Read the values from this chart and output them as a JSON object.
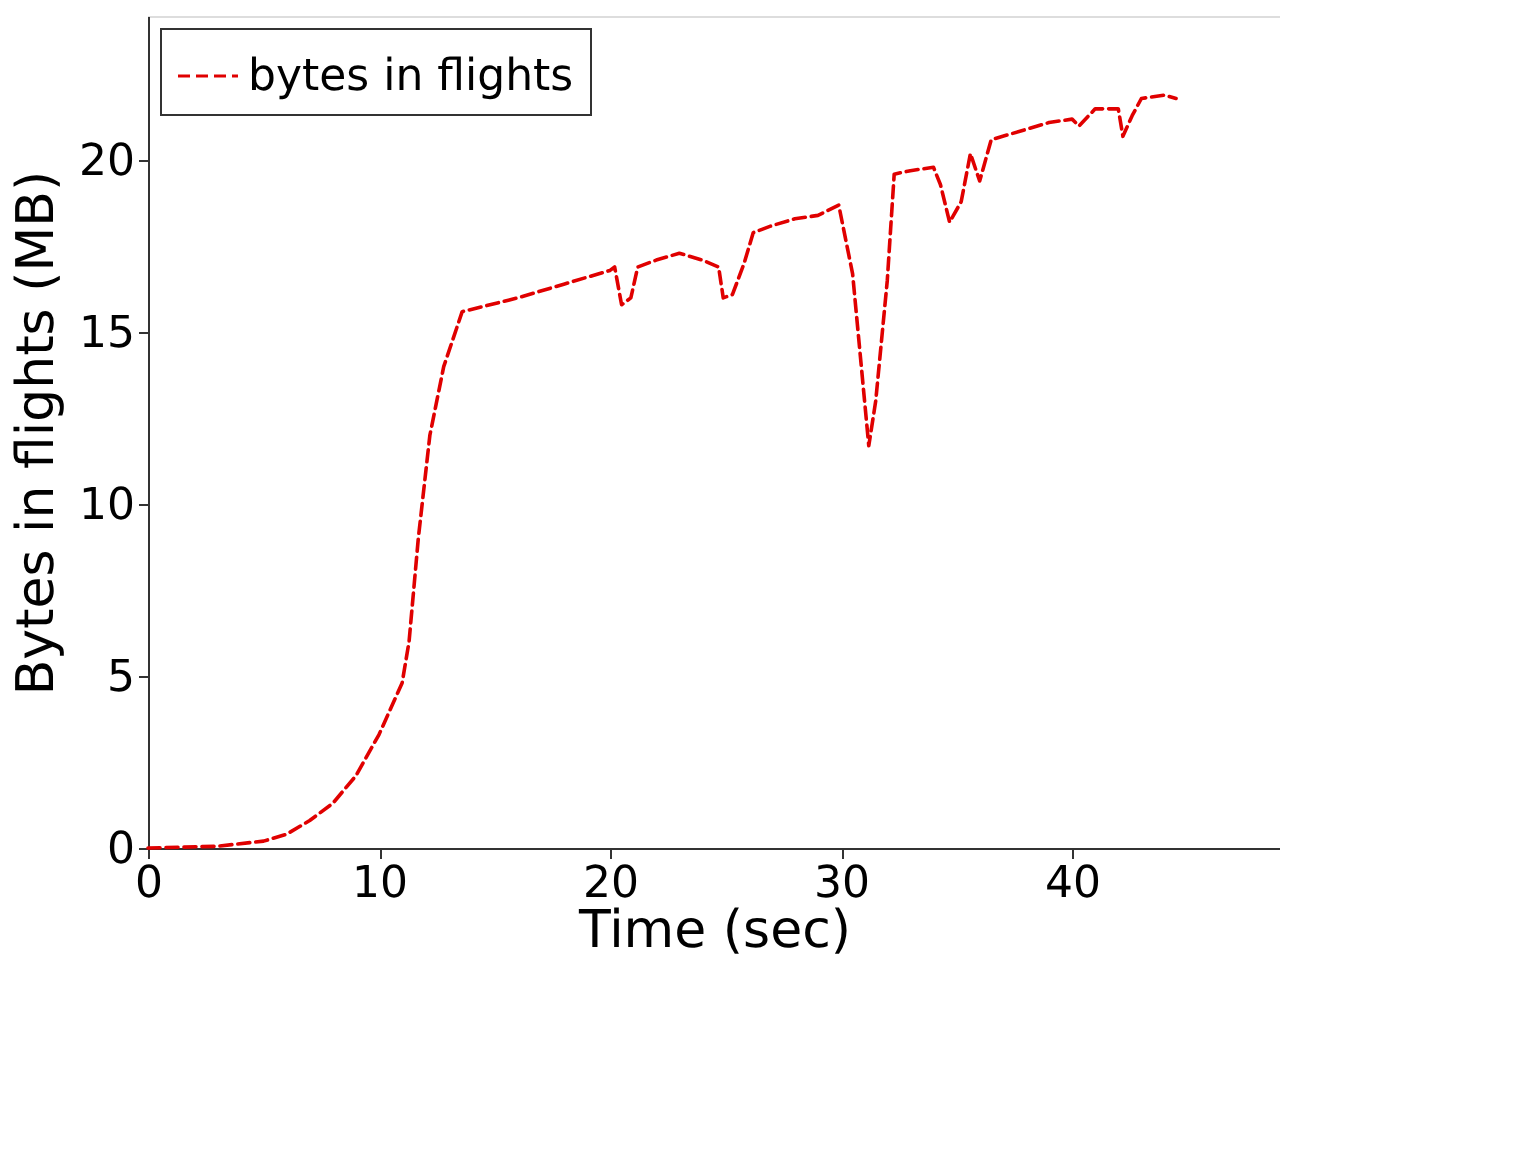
{
  "chart_data": {
    "type": "line",
    "xlabel": "Time (sec)",
    "ylabel": "Bytes in flights (MB)",
    "xlim": [
      0,
      49
    ],
    "ylim": [
      0,
      24.2
    ],
    "xticks": [
      0,
      10,
      20,
      30,
      40
    ],
    "yticks": [
      0,
      5,
      10,
      15,
      20
    ],
    "grid": false,
    "legend": "top left",
    "line_style": "dashed",
    "marker": "none",
    "x": [
      0,
      3,
      5,
      6,
      7,
      8,
      9,
      10,
      11,
      11.3,
      11.7,
      12.2,
      12.8,
      13.6,
      16,
      18,
      20,
      20.2,
      20.5,
      20.9,
      21.2,
      22,
      23,
      24,
      24.7,
      24.9,
      25.3,
      25.8,
      26.2,
      27,
      28,
      29,
      29.9,
      30.5,
      31.2,
      31.5,
      32,
      32.3,
      33,
      34,
      34.3,
      34.7,
      35.2,
      35.6,
      36,
      36.5,
      37,
      38,
      39,
      40,
      40.3,
      41,
      42,
      42.2,
      42.6,
      43,
      44,
      44.5
    ],
    "series": [
      {
        "name": "bytes in flights",
        "color": "#e00000",
        "values": [
          0,
          0.05,
          0.2,
          0.4,
          0.8,
          1.3,
          2.1,
          3.3,
          4.8,
          6,
          9,
          12,
          14,
          15.6,
          16,
          16.4,
          16.8,
          16.9,
          15.8,
          16.0,
          16.9,
          17.1,
          17.3,
          17.1,
          16.9,
          16.0,
          16.1,
          17.0,
          17.9,
          18.1,
          18.3,
          18.4,
          18.7,
          16.7,
          11.7,
          13,
          16.5,
          19.6,
          19.7,
          19.8,
          19.3,
          18.2,
          18.8,
          20.2,
          19.4,
          20.6,
          20.7,
          20.9,
          21.1,
          21.2,
          21.0,
          21.5,
          21.5,
          20.7,
          21.3,
          21.8,
          21.9,
          21.8
        ]
      }
    ]
  }
}
